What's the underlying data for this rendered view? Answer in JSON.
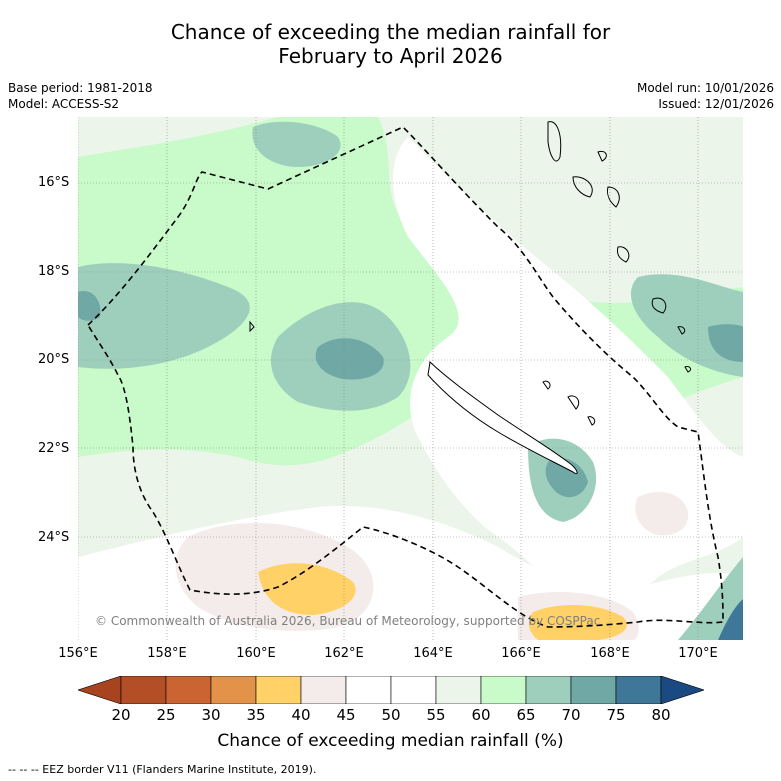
{
  "title": {
    "line1": "Chance of exceeding the median rainfall for",
    "line2": "February to April 2026"
  },
  "meta": {
    "base_period": "Base period: 1981-2018",
    "model": "Model: ACCESS-S2",
    "model_run": "Model run: 10/01/2026",
    "issued": "Issued: 12/01/2026"
  },
  "axes": {
    "lat_labels": [
      "16°S",
      "18°S",
      "20°S",
      "22°S",
      "24°S"
    ],
    "lon_labels": [
      "156°E",
      "158°E",
      "160°E",
      "162°E",
      "164°E",
      "166°E",
      "168°E",
      "170°E"
    ]
  },
  "colorbar": {
    "ticks": [
      "20",
      "25",
      "30",
      "35",
      "40",
      "45",
      "50",
      "55",
      "60",
      "65",
      "70",
      "75",
      "80"
    ],
    "colors": [
      "#a8431f",
      "#b34e27",
      "#ca6533",
      "#e29349",
      "#ffd167",
      "#f3ecea",
      "#ffffff",
      "#ffffff",
      "#ecf5ea",
      "#c8fbc9",
      "#9ecfbd",
      "#70a8a6",
      "#3f7799",
      "#1b4a82"
    ],
    "title": "Chance of exceeding median rainfall (%)"
  },
  "copyright": "© Commonwealth of Australia 2026, Bureau of Meteorology, supported by COSPPac",
  "legend": "--  --  -- EEZ border V11 (Flanders Marine Institute, 2019)."
}
